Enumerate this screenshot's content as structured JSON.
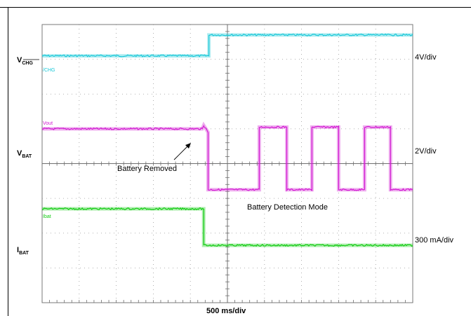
{
  "chart_data": {
    "type": "line",
    "title": "",
    "xlabel": "500 ms/div",
    "x_divisions": 10,
    "y_divisions": 8,
    "grid": true,
    "timebase_ms_per_div": 500,
    "x_range_ms": [
      0,
      5000
    ],
    "series": [
      {
        "name": "/CHG",
        "axis_label": "V",
        "axis_sub": "CHG",
        "scale": "4V/div",
        "color": "#19c8d8",
        "x_ms": [
          0,
          2250,
          2250,
          5000
        ],
        "level_div": [
          7.1,
          7.1,
          7.7,
          7.7
        ]
      },
      {
        "name": "Vout",
        "axis_label": "V",
        "axis_sub": "BAT",
        "scale": "2V/div",
        "color": "#d21ad2",
        "x_ms": [
          0,
          2160,
          2180,
          2240,
          2240,
          2930,
          2930,
          3300,
          3300,
          3640,
          3640,
          4000,
          4000,
          4350,
          4350,
          4700,
          4700,
          5000
        ],
        "level_div": [
          5.0,
          5.0,
          5.1,
          4.9,
          3.25,
          3.25,
          5.05,
          5.05,
          3.25,
          3.25,
          5.05,
          5.05,
          3.25,
          3.25,
          5.05,
          5.05,
          3.25,
          3.25
        ]
      },
      {
        "name": "Ibat",
        "axis_label": "I",
        "axis_sub": "BAT",
        "scale": "300 mA/div",
        "color": "#12cc12",
        "x_ms": [
          0,
          2180,
          2180,
          5000
        ],
        "level_div": [
          2.7,
          2.7,
          1.65,
          1.65
        ]
      }
    ],
    "annotations": [
      {
        "text": "Battery Removed"
      },
      {
        "text": "Battery Detection Mode"
      }
    ]
  }
}
